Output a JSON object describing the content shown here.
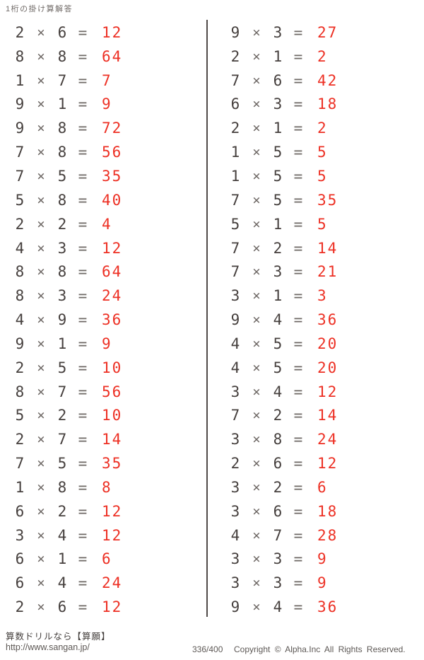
{
  "title": "1桁の掛け算解答",
  "symbols": {
    "times": "×",
    "equals": "="
  },
  "colors": {
    "digit": "#46403e",
    "operator": "#6e6865",
    "answer_red": "#ed3024",
    "divider": "#4f4a48",
    "footer_gray": "#5d5855"
  },
  "equations": {
    "left": [
      {
        "a": 2,
        "b": 6,
        "ans": 12
      },
      {
        "a": 8,
        "b": 8,
        "ans": 64
      },
      {
        "a": 1,
        "b": 7,
        "ans": 7
      },
      {
        "a": 9,
        "b": 1,
        "ans": 9
      },
      {
        "a": 9,
        "b": 8,
        "ans": 72
      },
      {
        "a": 7,
        "b": 8,
        "ans": 56
      },
      {
        "a": 7,
        "b": 5,
        "ans": 35
      },
      {
        "a": 5,
        "b": 8,
        "ans": 40
      },
      {
        "a": 2,
        "b": 2,
        "ans": 4
      },
      {
        "a": 4,
        "b": 3,
        "ans": 12
      },
      {
        "a": 8,
        "b": 8,
        "ans": 64
      },
      {
        "a": 8,
        "b": 3,
        "ans": 24
      },
      {
        "a": 4,
        "b": 9,
        "ans": 36
      },
      {
        "a": 9,
        "b": 1,
        "ans": 9
      },
      {
        "a": 2,
        "b": 5,
        "ans": 10
      },
      {
        "a": 8,
        "b": 7,
        "ans": 56
      },
      {
        "a": 5,
        "b": 2,
        "ans": 10
      },
      {
        "a": 2,
        "b": 7,
        "ans": 14
      },
      {
        "a": 7,
        "b": 5,
        "ans": 35
      },
      {
        "a": 1,
        "b": 8,
        "ans": 8
      },
      {
        "a": 6,
        "b": 2,
        "ans": 12
      },
      {
        "a": 3,
        "b": 4,
        "ans": 12
      },
      {
        "a": 6,
        "b": 1,
        "ans": 6
      },
      {
        "a": 6,
        "b": 4,
        "ans": 24
      },
      {
        "a": 2,
        "b": 6,
        "ans": 12
      }
    ],
    "right": [
      {
        "a": 9,
        "b": 3,
        "ans": 27
      },
      {
        "a": 2,
        "b": 1,
        "ans": 2
      },
      {
        "a": 7,
        "b": 6,
        "ans": 42
      },
      {
        "a": 6,
        "b": 3,
        "ans": 18
      },
      {
        "a": 2,
        "b": 1,
        "ans": 2
      },
      {
        "a": 1,
        "b": 5,
        "ans": 5
      },
      {
        "a": 1,
        "b": 5,
        "ans": 5
      },
      {
        "a": 7,
        "b": 5,
        "ans": 35
      },
      {
        "a": 5,
        "b": 1,
        "ans": 5
      },
      {
        "a": 7,
        "b": 2,
        "ans": 14
      },
      {
        "a": 7,
        "b": 3,
        "ans": 21
      },
      {
        "a": 3,
        "b": 1,
        "ans": 3
      },
      {
        "a": 9,
        "b": 4,
        "ans": 36
      },
      {
        "a": 4,
        "b": 5,
        "ans": 20
      },
      {
        "a": 4,
        "b": 5,
        "ans": 20
      },
      {
        "a": 3,
        "b": 4,
        "ans": 12
      },
      {
        "a": 7,
        "b": 2,
        "ans": 14
      },
      {
        "a": 3,
        "b": 8,
        "ans": 24
      },
      {
        "a": 2,
        "b": 6,
        "ans": 12
      },
      {
        "a": 3,
        "b": 2,
        "ans": 6
      },
      {
        "a": 3,
        "b": 6,
        "ans": 18
      },
      {
        "a": 4,
        "b": 7,
        "ans": 28
      },
      {
        "a": 3,
        "b": 3,
        "ans": 9
      },
      {
        "a": 3,
        "b": 3,
        "ans": 9
      },
      {
        "a": 9,
        "b": 4,
        "ans": 36
      }
    ]
  },
  "footer": {
    "site_line": "算数ドリルなら【算願】",
    "url": "http://www.sangan.jp/",
    "page_number": "336/400",
    "copyright": "Copyright © Alpha.Inc All Rights Reserved."
  }
}
